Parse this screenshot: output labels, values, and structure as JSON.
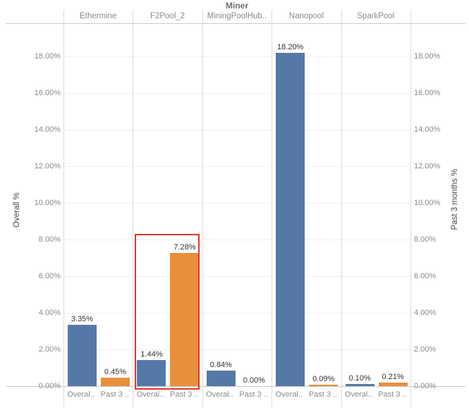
{
  "chart_data": {
    "type": "bar",
    "title": "Miner",
    "panels": [
      "Ethermine",
      "F2Pool_2",
      "MiningPoolHub..",
      "Nanopool",
      "SparkPool"
    ],
    "series": [
      {
        "name": "Overal..",
        "axis_label": "Overall %",
        "axis_side": "left",
        "color": "#5579a7",
        "values": [
          3.35,
          1.44,
          0.84,
          18.2,
          0.1
        ]
      },
      {
        "name": "Past 3 ..",
        "axis_label": "Past 3 months %",
        "axis_side": "right",
        "color": "#e88f3c",
        "values": [
          0.45,
          7.28,
          0.0,
          0.09,
          0.21
        ]
      }
    ],
    "bar_labels": [
      [
        "3.35%",
        "0.45%"
      ],
      [
        "1.44%",
        "7.28%"
      ],
      [
        "0.84%",
        "0.00%"
      ],
      [
        "18.20%",
        "0.09%"
      ],
      [
        "0.10%",
        "0.21%"
      ]
    ],
    "y_ticks": [
      "18.00%",
      "16.00%",
      "14.00%",
      "12.00%",
      "10.00%",
      "8.00%",
      "6.00%",
      "4.00%",
      "2.00%",
      "0.00%"
    ],
    "ylim": [
      0,
      19.8
    ],
    "grid": "on",
    "legend": "none",
    "highlight": {
      "panel": "F2Pool_2",
      "color": "#e0362b"
    }
  }
}
